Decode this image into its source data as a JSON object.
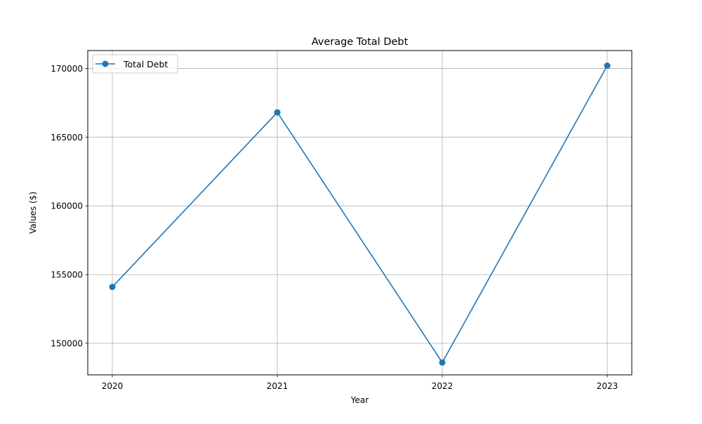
{
  "chart_data": {
    "type": "line",
    "title": "Average Total Debt",
    "xlabel": "Year",
    "ylabel": "Values ($)",
    "categories": [
      "2020",
      "2021",
      "2022",
      "2023"
    ],
    "series": [
      {
        "name": "Total Debt",
        "values": [
          154100,
          166800,
          148600,
          170200
        ],
        "color": "#1f77b4",
        "marker": "circle"
      }
    ],
    "ylim": [
      147700,
      171300
    ],
    "yticks": [
      150000,
      155000,
      160000,
      165000,
      170000
    ],
    "grid": true,
    "legend_position": "top-left"
  }
}
